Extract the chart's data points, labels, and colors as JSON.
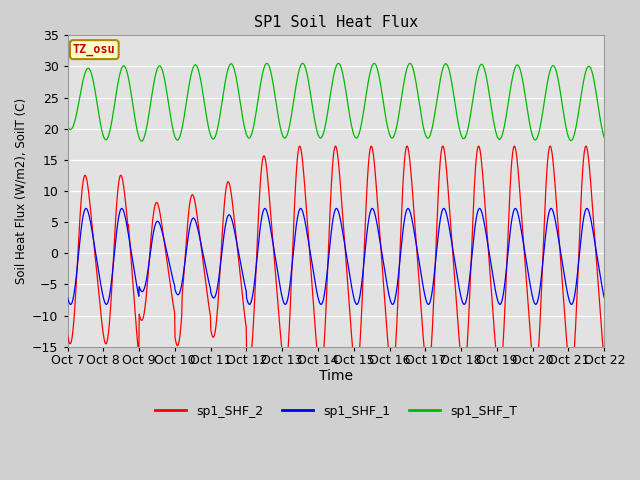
{
  "title": "SP1 Soil Heat Flux",
  "xlabel": "Time",
  "ylabel": "Soil Heat Flux (W/m2), SoilT (C)",
  "ylim": [
    -15,
    35
  ],
  "xlim": [
    0,
    15
  ],
  "tick_labels": [
    "Oct 7",
    "Oct 8",
    "Oct 9",
    "Oct 10",
    "Oct 11",
    "Oct 12",
    "Oct 13",
    "Oct 14",
    "Oct 15",
    "Oct 16",
    "Oct 17",
    "Oct 18",
    "Oct 19",
    "Oct 20",
    "Oct 21",
    "Oct 22"
  ],
  "tick_labels_display": [
    "Oct 7",
    "Oct 8",
    "Oct 9",
    "Oct 10Oct",
    "11Oct",
    "12Oct",
    "13Oct",
    "14Oct",
    "15Oct",
    "16Oct",
    "17Oct",
    "18Oct",
    "19Oct",
    "20Oct",
    "21Oct 22"
  ],
  "bg_color": "#d8d8d8",
  "plot_bg_color": "#e0e0e0",
  "grid_color": "#ffffff",
  "legend_entries": [
    "sp1_SHF_2",
    "sp1_SHF_1",
    "sp1_SHF_T"
  ],
  "line_colors": [
    "#ff0000",
    "#0000ff",
    "#00bb00"
  ],
  "tz_label": "TZ_osu",
  "tz_bg": "#ffffcc",
  "tz_border": "#aa8800",
  "n_days": 15,
  "pts_per_day": 100
}
